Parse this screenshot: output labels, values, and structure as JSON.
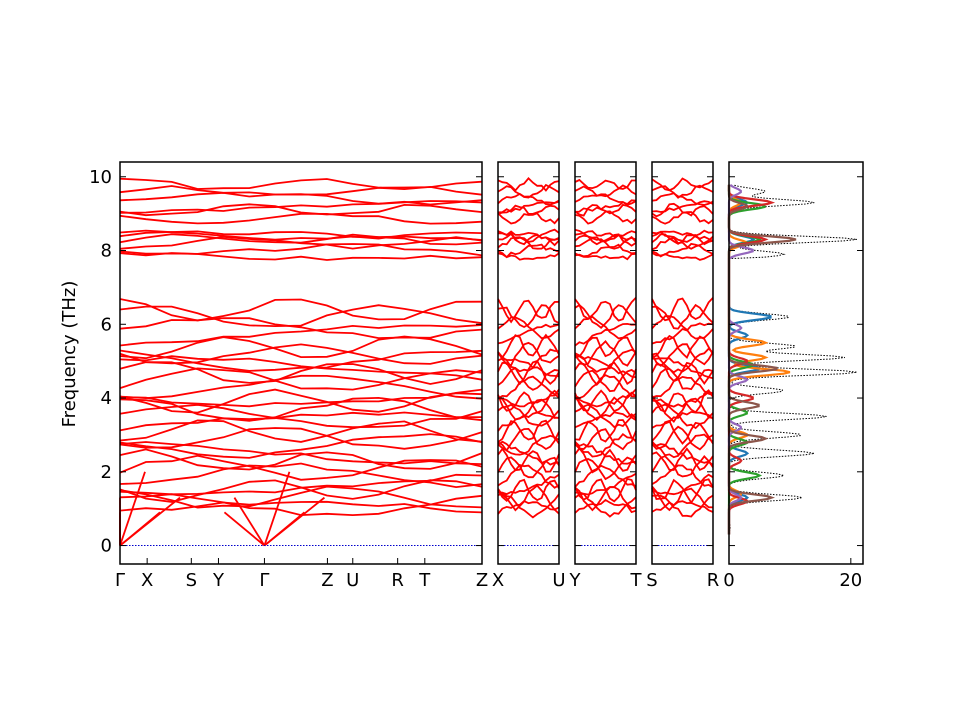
{
  "chart_data": [
    {
      "type": "line",
      "panel": "band-structure",
      "ylabel": "Frequency (THz)",
      "ylim": [
        -0.5,
        10.4
      ],
      "yticks": [
        0,
        2,
        4,
        6,
        8,
        10
      ],
      "segments": [
        {
          "start": "Γ",
          "end": "Z",
          "kpoints": [
            "Γ",
            "X",
            "S",
            "Y",
            "Γ",
            "Z",
            "U",
            "R",
            "T",
            "Z"
          ],
          "kpoint_pos": [
            0,
            0.075,
            0.197,
            0.272,
            0.399,
            0.573,
            0.643,
            0.767,
            0.842,
            1.0
          ]
        },
        {
          "start": "X",
          "end": "U",
          "kpoints": [
            "X",
            "U"
          ],
          "kpoint_pos": [
            0,
            1
          ]
        },
        {
          "start": "Y",
          "end": "T",
          "kpoints": [
            "Y",
            "T"
          ],
          "kpoint_pos": [
            0,
            1
          ]
        },
        {
          "start": "S",
          "end": "R",
          "kpoints": [
            "S",
            "R"
          ],
          "kpoint_pos": [
            0,
            1
          ]
        }
      ],
      "line_color": "#ff0000",
      "zero_line_color": "#0000cc",
      "high_bands_thz": [
        7.9,
        8.0,
        8.2,
        8.3,
        8.35,
        8.4,
        8.9,
        9.1,
        9.2,
        9.4,
        9.6,
        9.8
      ],
      "low_bands_thz": [
        0.9,
        1.1,
        1.3,
        1.5,
        1.7,
        1.9,
        2.1,
        2.3,
        2.5,
        2.7,
        2.9,
        3.1,
        3.3,
        3.5,
        3.7,
        3.9,
        4.1,
        4.3,
        4.5,
        4.7,
        4.8,
        5.0,
        5.2,
        5.4,
        5.7,
        5.9,
        6.2,
        6.4
      ]
    },
    {
      "type": "line",
      "panel": "density-of-states",
      "xlim": [
        0,
        22
      ],
      "xticks": [
        0,
        20
      ],
      "ylim": [
        -0.5,
        10.4
      ],
      "series": [
        {
          "color": "#000000",
          "style": "dotted",
          "peaks": [
            [
              0.5,
              0.2
            ],
            [
              1.3,
              12
            ],
            [
              1.9,
              9
            ],
            [
              2.5,
              14
            ],
            [
              3.0,
              12
            ],
            [
              3.5,
              16
            ],
            [
              4.2,
              9
            ],
            [
              4.7,
              21
            ],
            [
              5.1,
              19
            ],
            [
              5.4,
              11
            ],
            [
              6.2,
              10
            ],
            [
              7.9,
              9
            ],
            [
              8.3,
              21
            ],
            [
              9.3,
              14
            ],
            [
              9.6,
              6
            ]
          ]
        },
        {
          "color": "#1f77b4",
          "style": "solid",
          "peaks": [
            [
              1.3,
              3
            ],
            [
              2.5,
              3
            ],
            [
              4.8,
              5
            ],
            [
              5.7,
              3
            ],
            [
              6.2,
              7
            ],
            [
              8.3,
              4
            ],
            [
              9.3,
              3
            ]
          ]
        },
        {
          "color": "#ff7f0e",
          "style": "solid",
          "peaks": [
            [
              1.4,
              2
            ],
            [
              3.0,
              3
            ],
            [
              4.7,
              10
            ],
            [
              5.1,
              6
            ],
            [
              5.5,
              6
            ],
            [
              8.2,
              3
            ],
            [
              9.3,
              2
            ]
          ]
        },
        {
          "color": "#2ca02c",
          "style": "solid",
          "peaks": [
            [
              1.9,
              5
            ],
            [
              2.8,
              3
            ],
            [
              3.6,
              3
            ],
            [
              4.9,
              4
            ],
            [
              8.3,
              5
            ],
            [
              9.2,
              6
            ]
          ]
        },
        {
          "color": "#d62728",
          "style": "solid",
          "peaks": [
            [
              1.2,
              3
            ],
            [
              2.3,
              2
            ],
            [
              4.0,
              4
            ],
            [
              5.0,
              3
            ],
            [
              8.3,
              6
            ],
            [
              9.3,
              7
            ]
          ]
        },
        {
          "color": "#9467bd",
          "style": "solid",
          "peaks": [
            [
              1.3,
              2
            ],
            [
              3.2,
              2
            ],
            [
              4.5,
              3
            ],
            [
              5.9,
              2
            ],
            [
              8.0,
              4
            ],
            [
              9.6,
              2
            ]
          ]
        },
        {
          "color": "#8c564b",
          "style": "solid",
          "peaks": [
            [
              1.3,
              7
            ],
            [
              2.9,
              6
            ],
            [
              3.8,
              5
            ],
            [
              4.8,
              8
            ],
            [
              8.3,
              11
            ],
            [
              9.2,
              3
            ]
          ]
        }
      ]
    }
  ]
}
